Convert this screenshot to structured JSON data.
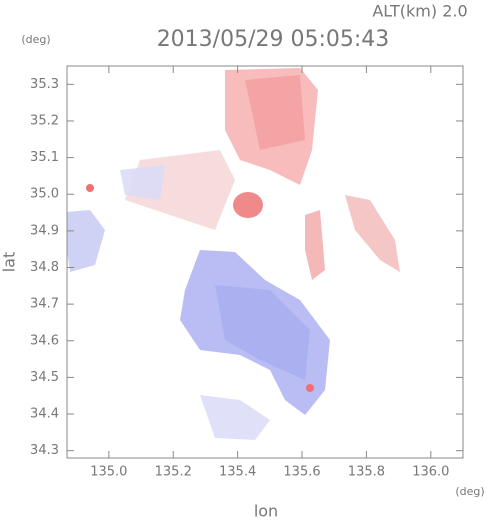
{
  "chart_data": {
    "type": "map",
    "title": "2013/05/29 05:05:43",
    "subtitle": "ALT(km) 2.0",
    "y_unit": "(deg)",
    "x_unit": "(deg)",
    "ylabel": "lat",
    "xlabel": "lon",
    "xlim": [
      134.87,
      136.1
    ],
    "ylim": [
      34.28,
      35.35
    ],
    "xticks": [
      {
        "value": 135,
        "label": "135.0"
      },
      135.2,
      135.4,
      135.6,
      135.8,
      {
        "value": 136,
        "label": "136.0"
      }
    ],
    "yticks": [
      34.3,
      34.4,
      34.5,
      34.6,
      34.7,
      34.8,
      34.9,
      {
        "value": 35,
        "label": "35.0"
      },
      35.1,
      35.2,
      35.3
    ]
  }
}
